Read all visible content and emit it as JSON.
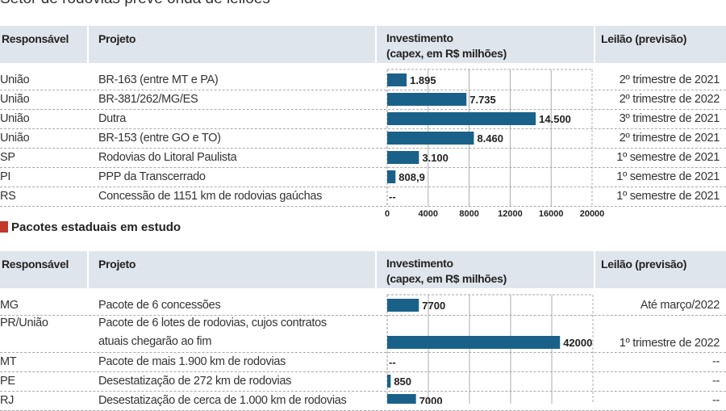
{
  "title": "Setor de rodovias prevê onda de leilões",
  "headers": {
    "responsavel": "Responsável",
    "projeto": "Projeto",
    "investimento_1": "Investimento",
    "investimento_2": "(capex, em R$ milhões)",
    "leilao": "Leilão (previsão)"
  },
  "section2_title": "Pacotes estaduais em estudo",
  "colors": {
    "bar": "#1a6189",
    "header_bg": "#dfe5ec",
    "section_marker": "#c0392b"
  },
  "chart_data": [
    {
      "type": "bar",
      "orientation": "horizontal",
      "xlim": [
        0,
        20000
      ],
      "xticks": [
        "0",
        "4000",
        "8000",
        "12000",
        "16000",
        "20000"
      ],
      "rows": [
        {
          "responsavel": "União",
          "projeto": "BR-163 (entre MT e PA)",
          "value": 1895,
          "label": "1.895",
          "leilao": "2º trimestre de 2021"
        },
        {
          "responsavel": "União",
          "projeto": "BR-381/262/MG/ES",
          "value": 7735,
          "label": "7.735",
          "leilao": "2º trimestre de 2022"
        },
        {
          "responsavel": "União",
          "projeto": "Dutra",
          "value": 14500,
          "label": "14.500",
          "leilao": "3º trimestre de 2021"
        },
        {
          "responsavel": "União",
          "projeto": "BR-153 (entre GO e TO)",
          "value": 8460,
          "label": "8.460",
          "leilao": "2º trimestre de 2021"
        },
        {
          "responsavel": "SP",
          "projeto": "Rodovias do Litoral Paulista",
          "value": 3100,
          "label": "3.100",
          "leilao": "1º semestre de 2021"
        },
        {
          "responsavel": "PI",
          "projeto": "PPP da Transcerrado",
          "value": 808.9,
          "label": "808,9",
          "leilao": "1º semestre de 2021"
        },
        {
          "responsavel": "RS",
          "projeto": "Concessão de 1151 km de rodovias gaúchas",
          "value": null,
          "label": "--",
          "leilao": "1º semestre de 2021"
        }
      ]
    },
    {
      "type": "bar",
      "orientation": "horizontal",
      "xlim": [
        0,
        50000
      ],
      "rows": [
        {
          "responsavel": "MG",
          "projeto": "Pacote de 6 concessões",
          "value": 7700,
          "label": "7700",
          "leilao": "Até março/2022"
        },
        {
          "responsavel": "PR/União",
          "projeto": "Pacote de 6 lotes de rodovias, cujos contratos",
          "projeto_2": "atuais chegarão ao fim",
          "value": 42000,
          "label": "42000",
          "leilao": "1º trimestre de 2022"
        },
        {
          "responsavel": "MT",
          "projeto": "Pacote de mais 1.900 km de rodovias",
          "value": null,
          "label": "--",
          "leilao": "--"
        },
        {
          "responsavel": "PE",
          "projeto": "Desestatização de 272 km de rodovias",
          "value": 850,
          "label": "850",
          "leilao": "--"
        },
        {
          "responsavel": "RJ",
          "projeto": "Desestatização de cerca de 1.000 km de rodovias",
          "value": 7000,
          "label": "7000",
          "leilao": "--"
        }
      ]
    }
  ]
}
